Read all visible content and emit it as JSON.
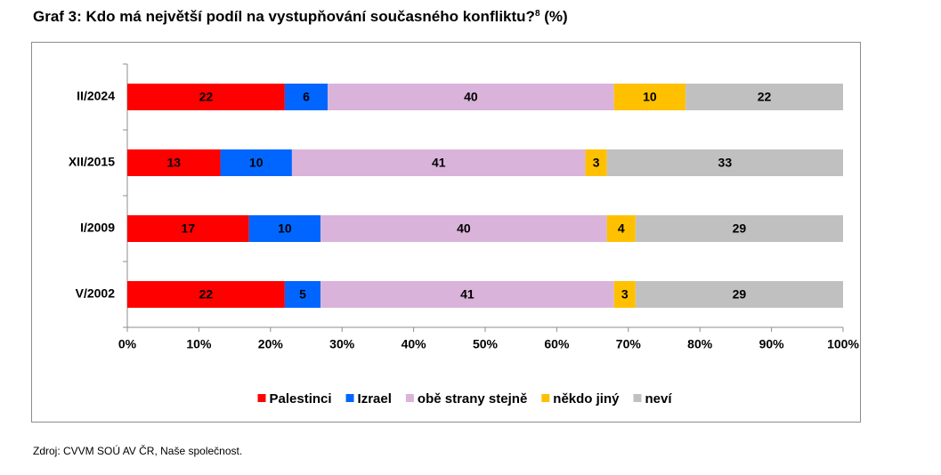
{
  "title": {
    "main": "Graf 3: Kdo má největší podíl na vystupňování současného konfliktu?",
    "footnote": "8",
    "unit": "(%)"
  },
  "source": "Zdroj: CVVM SOÚ AV ČR, Naše společnost.",
  "chart_data": {
    "type": "bar",
    "orientation": "horizontal",
    "stacked": "percent",
    "categories": [
      "II/2024",
      "XII/2015",
      "I/2009",
      "V/2002"
    ],
    "series": [
      {
        "name": "Palestinci",
        "color": "#ff0000",
        "values": [
          22,
          13,
          17,
          22
        ]
      },
      {
        "name": "Izrael",
        "color": "#0066ff",
        "values": [
          6,
          10,
          10,
          5
        ]
      },
      {
        "name": "obě strany stejně",
        "color": "#d9b3d9",
        "values": [
          40,
          41,
          40,
          41
        ]
      },
      {
        "name": "někdo jiný",
        "color": "#ffc000",
        "values": [
          10,
          3,
          4,
          3
        ]
      },
      {
        "name": "neví",
        "color": "#c0c0c0",
        "values": [
          22,
          33,
          29,
          29
        ]
      }
    ],
    "x_ticks": [
      "0%",
      "10%",
      "20%",
      "30%",
      "40%",
      "50%",
      "60%",
      "70%",
      "80%",
      "90%",
      "100%"
    ],
    "xlim": [
      0,
      100
    ],
    "grid": false,
    "legend": "bottom"
  }
}
